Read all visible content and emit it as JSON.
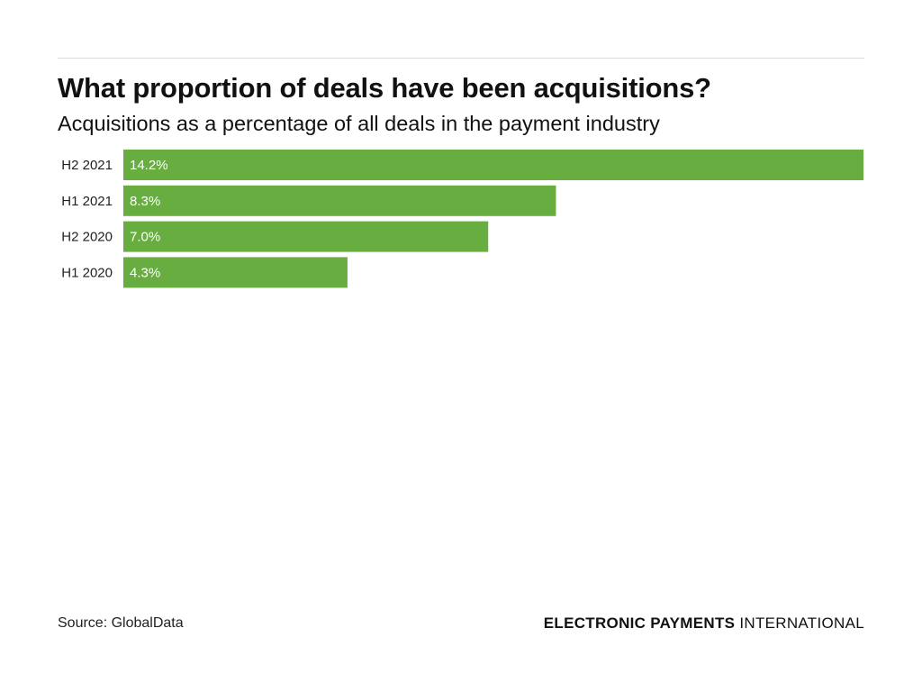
{
  "header": {
    "title": "What proportion of deals have been acquisitions?",
    "subtitle": "Acquisitions as a percentage of all deals in the payment industry"
  },
  "chart_data": {
    "type": "bar",
    "orientation": "horizontal",
    "title": "What proportion of deals have been acquisitions?",
    "subtitle": "Acquisitions as a percentage of all deals in the payment industry",
    "categories": [
      "H2 2021",
      "H1 2021",
      "H2 2020",
      "H1 2020"
    ],
    "values": [
      14.2,
      8.3,
      7.0,
      4.3
    ],
    "data_labels": [
      "14.2%",
      "8.3%",
      "7.0%",
      "4.3%"
    ],
    "xlim": [
      0,
      14.2
    ],
    "grid": false,
    "legend": "none",
    "bar_color": "#68ad3f",
    "label_color": "#ffffff"
  },
  "footer": {
    "source": "Source: GlobalData",
    "brand_bold": "ELECTRONIC PAYMENTS",
    "brand_light": "INTERNATIONAL"
  }
}
